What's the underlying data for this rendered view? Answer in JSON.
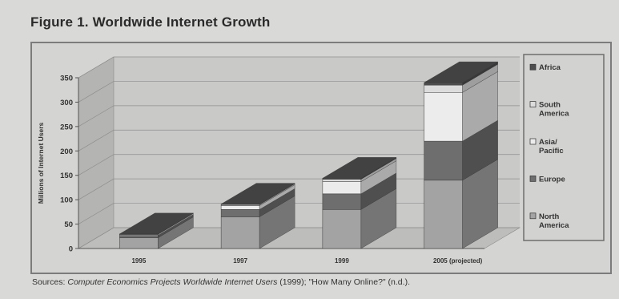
{
  "figure_title": "Figure 1. Worldwide Internet Growth",
  "sources": {
    "prefix": "Sources: ",
    "italic": "Computer Economics Projects Worldwide Internet Users",
    "suffix": " (1999); \"How Many Online?\" (n.d.)."
  },
  "chart_data": {
    "type": "bar",
    "stacked": true,
    "three_d": true,
    "title": "",
    "ylabel": "Millions of Internet Users",
    "xlabel": "",
    "ylim": [
      0,
      350
    ],
    "yticks": [
      0,
      50,
      100,
      150,
      200,
      250,
      300,
      350
    ],
    "grid": true,
    "legend_position": "right",
    "categories": [
      "1995",
      "1997",
      "1999",
      "2005 (projected)"
    ],
    "series": [
      {
        "name": "North America",
        "color": "#a3a3a3",
        "values": [
          22,
          65,
          80,
          140
        ]
      },
      {
        "name": "Europe",
        "color": "#6e6e6e",
        "values": [
          5,
          15,
          32,
          80
        ]
      },
      {
        "name": "Asia/ Pacific",
        "color": "#ececec",
        "values": [
          2,
          8,
          25,
          100
        ]
      },
      {
        "name": "South America",
        "color": "#dcdcdc",
        "values": [
          0.5,
          2,
          5,
          15
        ]
      },
      {
        "name": "Africa",
        "color": "#4e4e4e",
        "values": [
          0.3,
          1,
          2,
          5
        ]
      }
    ],
    "legend_order": [
      "Africa",
      "South America",
      "Asia/ Pacific",
      "Europe",
      "North America"
    ]
  }
}
